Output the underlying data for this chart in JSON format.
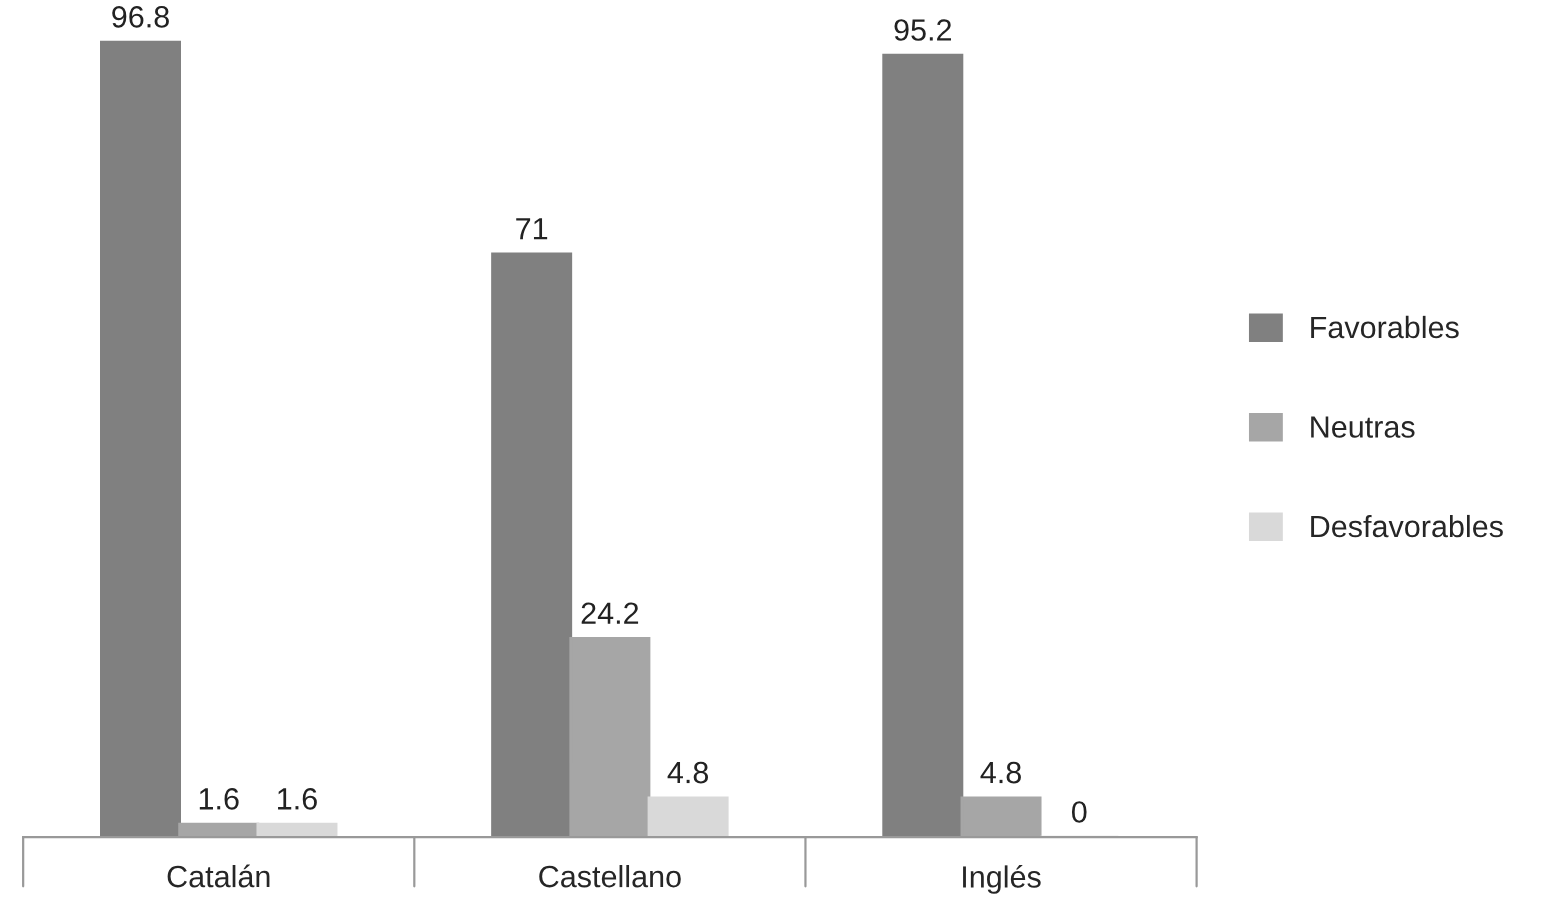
{
  "chart_data": {
    "type": "bar",
    "categories": [
      "Catalán",
      "Castellano",
      "Inglés"
    ],
    "series": [
      {
        "name": "Favorables",
        "color": "#808080",
        "values": [
          96.8,
          71,
          95.2
        ]
      },
      {
        "name": "Neutras",
        "color": "#a6a6a6",
        "values": [
          1.6,
          24.2,
          4.8
        ]
      },
      {
        "name": "Desfavorables",
        "color": "#d9d9d9",
        "values": [
          1.6,
          4.8,
          0
        ]
      }
    ],
    "data_labels": true,
    "legend": "right",
    "grid": false,
    "tick_labels": "x"
  }
}
